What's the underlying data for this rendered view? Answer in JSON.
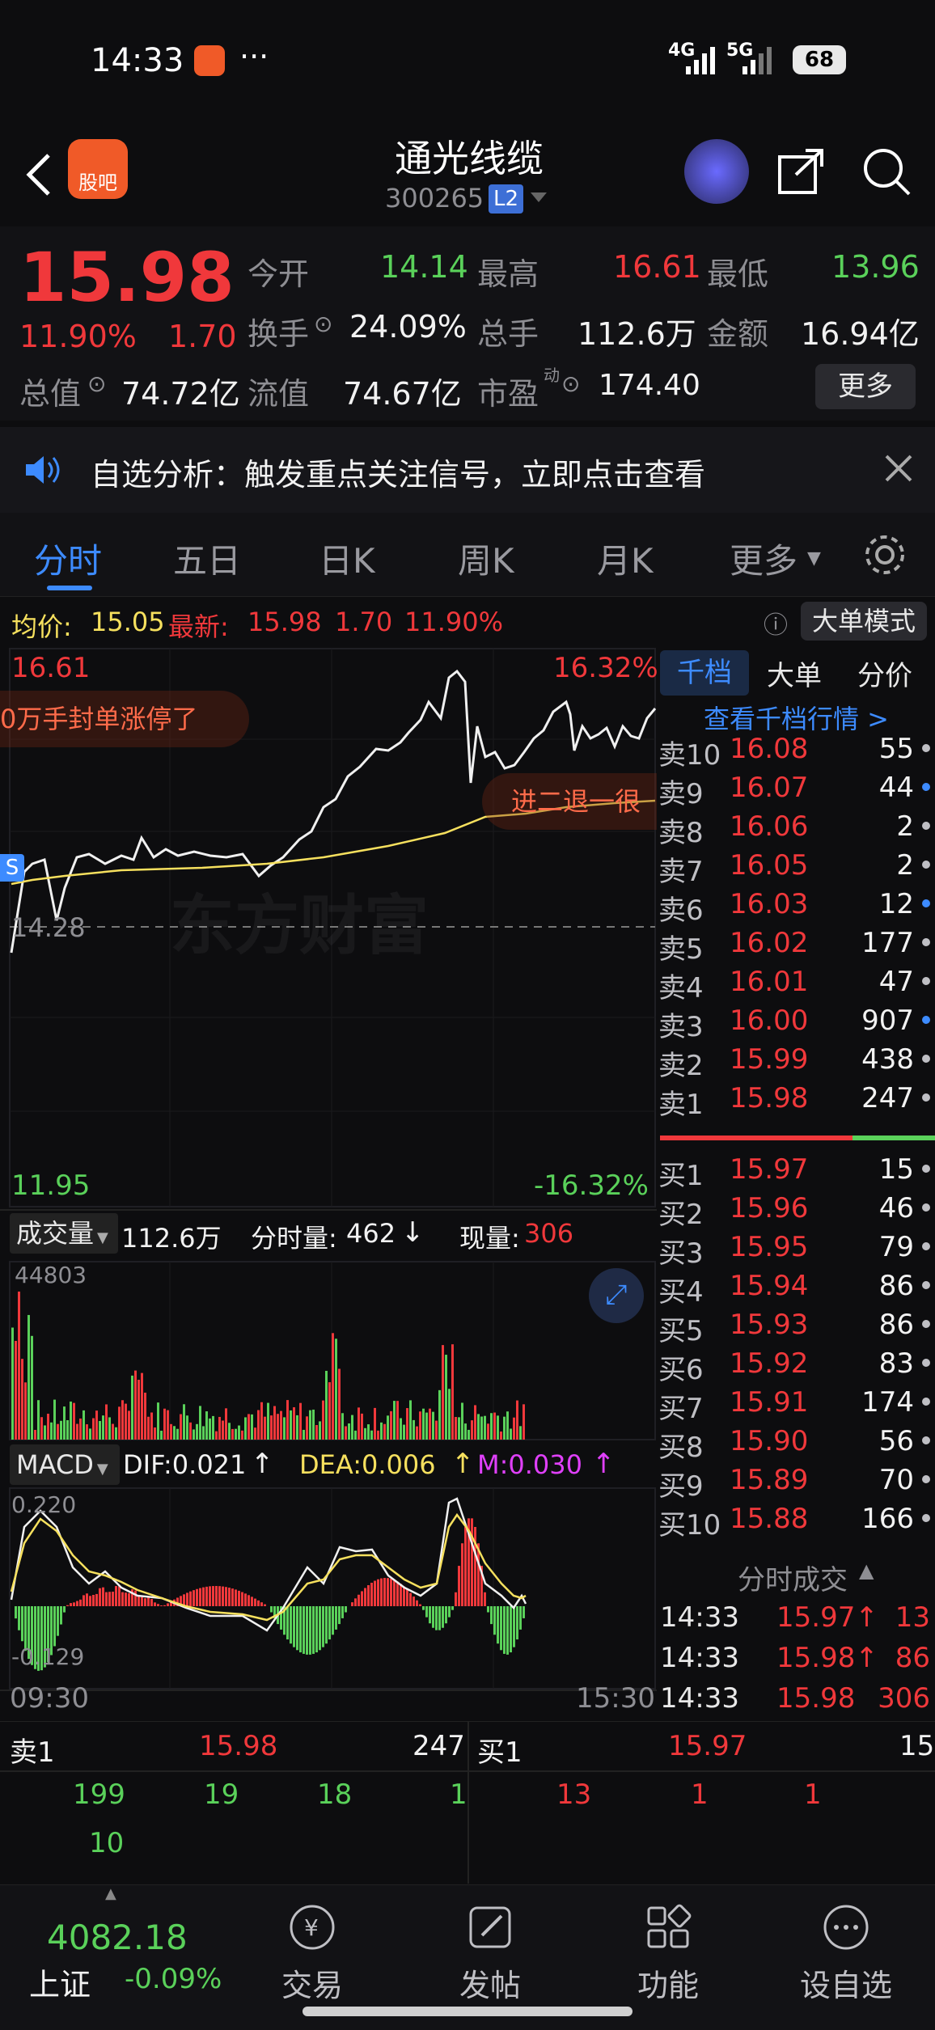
{
  "status": {
    "time": "14:33",
    "signal1": "4G",
    "signal2": "5G",
    "battery": "68"
  },
  "header": {
    "app_badge": "股吧",
    "stock_name": "通光线缆",
    "stock_code": "300265",
    "level_badge": "L2"
  },
  "quote": {
    "price": "15.98",
    "change_pct": "11.90%",
    "change": "1.70",
    "open_label": "今开",
    "open": "14.14",
    "high_label": "最高",
    "high": "16.61",
    "low_label": "最低",
    "low": "13.96",
    "turnover_label": "换手",
    "turnover": "24.09%",
    "volume_label": "总手",
    "volume": "112.6万",
    "amount_label": "金额",
    "amount": "16.94亿",
    "mktcap_label": "总值",
    "mktcap": "74.72亿",
    "float_label": "流值",
    "float": "74.67亿",
    "pe_label": "市盈",
    "pe_sup": "动",
    "pe": "174.40",
    "more_label": "更多"
  },
  "notice": {
    "text": "自选分析：触发重点关注信号，立即点击查看"
  },
  "tabs": [
    "分时",
    "五日",
    "日K",
    "周K",
    "月K",
    "更多"
  ],
  "infobar": {
    "avg_label": "均价:",
    "avg": "15.05",
    "latest_label": "最新:",
    "latest": "15.98",
    "chg": "1.70",
    "pct": "11.90%",
    "mode_button": "大单模式"
  },
  "chart": {
    "top_price": "16.61",
    "top_pct": "16.32%",
    "bottom_price": "11.95",
    "bottom_pct": "-16.32%",
    "ref_price": "14.28",
    "watermark": "东方财富",
    "bubble_left": "0万手封单涨停了",
    "bubble_right": "进二退一很",
    "s_badge": "S",
    "volume_label": "成交量",
    "volume_total": "112.6万",
    "tick_vol_label": "分时量:",
    "tick_vol": "462",
    "tick_vol_arrow": "↓",
    "now_vol_label": "现量:",
    "now_vol": "306",
    "vol_max": "44803",
    "macd_label": "MACD",
    "dif": "DIF:0.021",
    "dif_arrow": "↑",
    "dea": "DEA:0.006",
    "dea_arrow": "↑",
    "m": "M:0.030",
    "m_arrow": "↑",
    "macd_top": "0.220",
    "macd_bottom": "-0.129",
    "time_start": "09:30",
    "time_end": "15:30"
  },
  "book_tabs": [
    "千档",
    "大单",
    "分价"
  ],
  "book_link": "查看千档行情 >",
  "asks": [
    {
      "label": "卖10",
      "price": "16.08",
      "vol": "55"
    },
    {
      "label": "卖9",
      "price": "16.07",
      "vol": "44"
    },
    {
      "label": "卖8",
      "price": "16.06",
      "vol": "2"
    },
    {
      "label": "卖7",
      "price": "16.05",
      "vol": "2"
    },
    {
      "label": "卖6",
      "price": "16.03",
      "vol": "12"
    },
    {
      "label": "卖5",
      "price": "16.02",
      "vol": "177"
    },
    {
      "label": "卖4",
      "price": "16.01",
      "vol": "47"
    },
    {
      "label": "卖3",
      "price": "16.00",
      "vol": "907"
    },
    {
      "label": "卖2",
      "price": "15.99",
      "vol": "438"
    },
    {
      "label": "卖1",
      "price": "15.98",
      "vol": "247"
    }
  ],
  "bids": [
    {
      "label": "买1",
      "price": "15.97",
      "vol": "15"
    },
    {
      "label": "买2",
      "price": "15.96",
      "vol": "46"
    },
    {
      "label": "买3",
      "price": "15.95",
      "vol": "79"
    },
    {
      "label": "买4",
      "price": "15.94",
      "vol": "86"
    },
    {
      "label": "买5",
      "price": "15.93",
      "vol": "86"
    },
    {
      "label": "买6",
      "price": "15.92",
      "vol": "83"
    },
    {
      "label": "买7",
      "price": "15.91",
      "vol": "174"
    },
    {
      "label": "买8",
      "price": "15.90",
      "vol": "56"
    },
    {
      "label": "买9",
      "price": "15.89",
      "vol": "70"
    },
    {
      "label": "买10",
      "price": "15.88",
      "vol": "166"
    }
  ],
  "trades_title": "分时成交",
  "trades": [
    {
      "time": "14:33",
      "price": "15.97",
      "arrow": "↑",
      "vol": "13"
    },
    {
      "time": "14:33",
      "price": "15.98",
      "arrow": "↑",
      "vol": "86"
    },
    {
      "time": "14:33",
      "price": "15.98",
      "arrow": "",
      "vol": "306"
    }
  ],
  "bottom": {
    "sell_label": "卖1",
    "sell_price": "15.98",
    "sell_vol": "247",
    "buy_label": "买1",
    "buy_price": "15.97",
    "buy_vol": "15",
    "sell_queue": [
      "199",
      "19",
      "18",
      "1"
    ],
    "sell_queue2": [
      "10"
    ],
    "buy_queue": [
      "13",
      "1",
      "1"
    ]
  },
  "navbar": {
    "index_value": "4082.18",
    "index_name": "上证",
    "index_pct": "-0.09%",
    "items": [
      "交易",
      "发帖",
      "功能",
      "设自选"
    ]
  },
  "colors": {
    "up": "#f0383b",
    "down": "#5ad15a",
    "accent": "#3d8bff",
    "avg_line": "#f6e05e"
  }
}
